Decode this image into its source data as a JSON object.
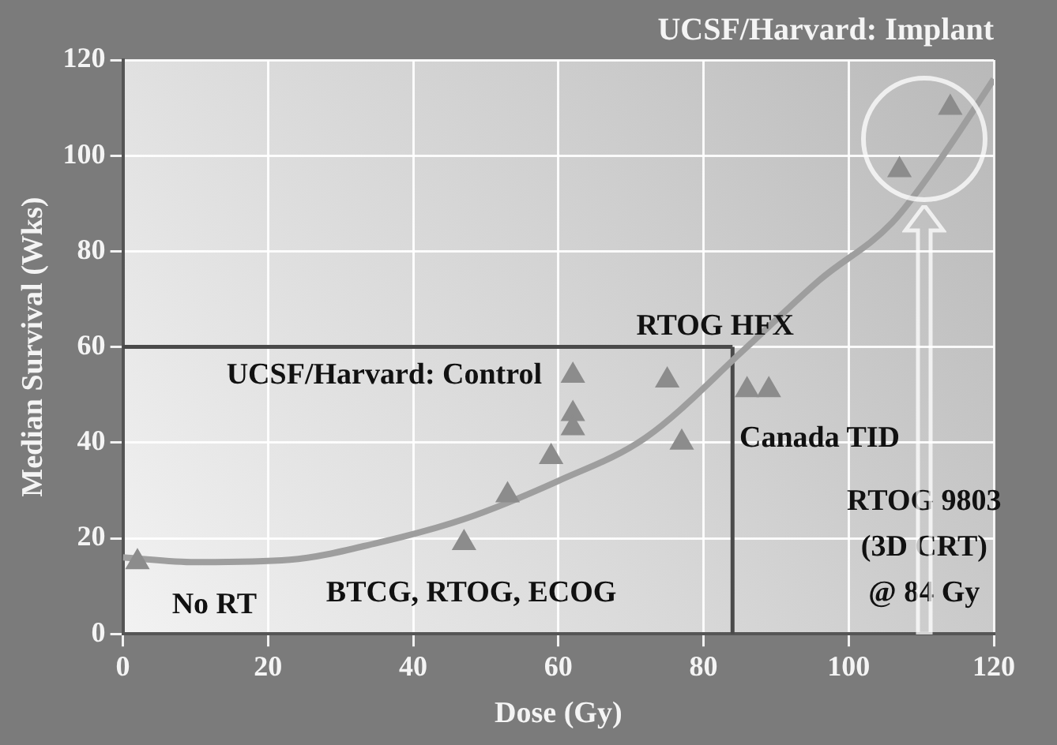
{
  "chart_data": {
    "type": "scatter",
    "title": "UCSF/Harvard: Implant",
    "xlabel": "Dose (Gy)",
    "ylabel": "Median Survival (Wks)",
    "xlim": [
      0,
      120
    ],
    "ylim": [
      0,
      120
    ],
    "xticks": [
      0,
      20,
      40,
      60,
      80,
      100,
      120
    ],
    "yticks": [
      0,
      20,
      40,
      60,
      80,
      100,
      120
    ],
    "grid": true,
    "marker": "triangle",
    "series": [
      {
        "color": "#8c8c8c",
        "x": [
          2,
          47,
          53,
          59,
          62,
          62,
          62,
          77,
          75,
          86,
          89,
          107,
          114
        ],
        "values": [
          15,
          19,
          29,
          37,
          54,
          46,
          43,
          40,
          53,
          51,
          51,
          97,
          110
        ]
      },
      {
        "type": "line",
        "color": "#9e9e9e",
        "marker": "none",
        "x": [
          0,
          10,
          23,
          35,
          47,
          60,
          72,
          86,
          96,
          106,
          113,
          120
        ],
        "values": [
          16,
          15,
          15.5,
          19,
          24,
          32,
          41,
          60,
          74,
          86,
          100,
          116
        ]
      }
    ],
    "ref_lines": [
      {
        "axis": "y",
        "value": 60,
        "color": "#4a4a4a"
      },
      {
        "axis": "x",
        "value": 84,
        "color": "#4a4a4a"
      }
    ],
    "annotations": [
      "No RT",
      "BTCG, RTOG, ECOG",
      "UCSF/Harvard: Control",
      "RTOG HFX",
      "Canada TID",
      "RTOG 9803",
      "(3D CRT)",
      "@ 84 Gy"
    ]
  }
}
